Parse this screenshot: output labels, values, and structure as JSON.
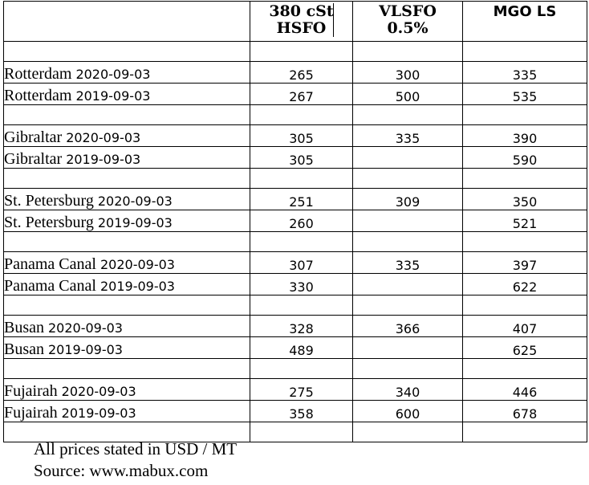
{
  "headers": {
    "col1": [
      "380 cSt",
      "HSFO"
    ],
    "col2": [
      "VLSFO",
      "0.5%"
    ],
    "col3": "MGO LS"
  },
  "rows": [
    {
      "port": "Rotterdam",
      "date": "2020-09-03",
      "hsfo": "265",
      "vlsfo": "300",
      "mgo": "335"
    },
    {
      "port": "Rotterdam",
      "date": "2019-09-03",
      "hsfo": "267",
      "vlsfo": "500",
      "mgo": "535"
    },
    {
      "port": "Gibraltar",
      "date": "2020-09-03",
      "hsfo": "305",
      "vlsfo": "335",
      "mgo": "390"
    },
    {
      "port": "Gibraltar",
      "date": "2019-09-03",
      "hsfo": "305",
      "vlsfo": "",
      "mgo": "590"
    },
    {
      "port": "St. Petersburg",
      "date": "2020-09-03",
      "hsfo": "251",
      "vlsfo": "309",
      "mgo": "350"
    },
    {
      "port": "St. Petersburg",
      "date": "2019-09-03",
      "hsfo": "260",
      "vlsfo": "",
      "mgo": "521"
    },
    {
      "port": "Panama Canal",
      "date": "2020-09-03",
      "hsfo": "307",
      "vlsfo": "335",
      "mgo": "397"
    },
    {
      "port": "Panama Canal",
      "date": "2019-09-03",
      "hsfo": "330",
      "vlsfo": "",
      "mgo": "622"
    },
    {
      "port": "Busan",
      "date": "2020-09-03",
      "hsfo": "328",
      "vlsfo": "366",
      "mgo": "407"
    },
    {
      "port": "Busan",
      "date": "2019-09-03",
      "hsfo": "489",
      "vlsfo": "",
      "mgo": "625"
    },
    {
      "port": "Fujairah",
      "date": "2020-09-03",
      "hsfo": "275",
      "vlsfo": "340",
      "mgo": "446"
    },
    {
      "port": "Fujairah",
      "date": "2019-09-03",
      "hsfo": "358",
      "vlsfo": "600",
      "mgo": "678"
    }
  ],
  "footer": {
    "note": "All prices stated in USD / MT",
    "source": "Source: www.mabux.com"
  }
}
